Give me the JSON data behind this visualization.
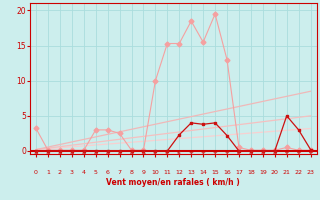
{
  "xlabel": "Vent moyen/en rafales ( km/h )",
  "bg_color": "#cceeed",
  "grid_color": "#aadddd",
  "xlim": [
    -0.5,
    23.5
  ],
  "ylim": [
    -0.5,
    21
  ],
  "yticks": [
    0,
    5,
    10,
    15,
    20
  ],
  "xticks": [
    0,
    1,
    2,
    3,
    4,
    5,
    6,
    7,
    8,
    9,
    10,
    11,
    12,
    13,
    14,
    15,
    16,
    17,
    18,
    19,
    20,
    21,
    22,
    23
  ],
  "line_rafales": {
    "x": [
      0,
      1,
      2,
      3,
      4,
      5,
      6,
      7,
      8,
      9,
      10,
      11,
      12,
      13,
      14,
      15,
      16,
      17,
      18,
      19,
      20,
      21,
      22,
      23
    ],
    "y": [
      3.2,
      0.1,
      0.1,
      0.1,
      0.1,
      3.0,
      3.0,
      2.5,
      0.1,
      0.1,
      10.0,
      15.3,
      15.3,
      18.5,
      15.5,
      19.5,
      13.0,
      0.5,
      0.1,
      0.1,
      0.1,
      0.5,
      0.1,
      0.1
    ],
    "color": "#f5a0a0",
    "lw": 0.8,
    "ms": 2.5
  },
  "line_trend1": {
    "x": [
      0,
      23
    ],
    "y": [
      0.2,
      8.5
    ],
    "color": "#f0b8b8",
    "lw": 0.9
  },
  "line_trend2": {
    "x": [
      0,
      23
    ],
    "y": [
      0.2,
      5.0
    ],
    "color": "#f5c0c0",
    "lw": 0.9
  },
  "line_trend3": {
    "x": [
      0,
      23
    ],
    "y": [
      0.2,
      3.2
    ],
    "color": "#f8d0d0",
    "lw": 0.9
  },
  "line_moyen": {
    "x": [
      0,
      1,
      2,
      3,
      4,
      5,
      6,
      7,
      8,
      9,
      10,
      11,
      12,
      13,
      14,
      15,
      16,
      17,
      18,
      19,
      20,
      21,
      22,
      23
    ],
    "y": [
      0,
      0,
      0,
      0,
      0,
      0,
      0,
      0,
      0,
      0,
      0,
      0,
      2.3,
      4.0,
      3.8,
      4.0,
      2.2,
      0,
      0,
      0,
      0,
      5.0,
      3.0,
      0.2
    ],
    "color": "#cc1111",
    "lw": 0.9,
    "ms": 2.0
  },
  "line_zero": {
    "y": 0,
    "color": "#cc0000",
    "lw": 1.5
  },
  "arrow_angles": [
    225,
    225,
    225,
    225,
    225,
    225,
    225,
    225,
    225,
    225,
    180,
    180,
    180,
    135,
    135,
    135,
    135,
    180,
    225,
    225,
    225,
    135,
    135,
    135
  ],
  "arrow_color": "#cc2222",
  "tick_color": "#cc0000",
  "xlabel_color": "#cc0000"
}
